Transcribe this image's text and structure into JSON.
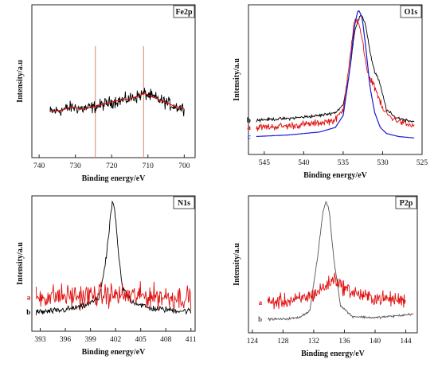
{
  "chart_data": [
    {
      "type": "line",
      "panel_label": "Fe2p",
      "xlabel": "Binding energy/eV",
      "ylabel": "Intensity/a.u",
      "xlim": [
        742,
        697
      ],
      "x_ticks": [
        740,
        730,
        720,
        710,
        700
      ],
      "y_ticks_labeled": false,
      "reference_lines": [
        724.5,
        711.2
      ],
      "reference_line_color": "#d98a6a",
      "series": [
        {
          "style": "noisy",
          "color": "#000000",
          "x": [
            737,
            734,
            731,
            728,
            725,
            722,
            719,
            716,
            713,
            711,
            709,
            706,
            703,
            700
          ],
          "values": [
            0.3,
            0.31,
            0.33,
            0.32,
            0.33,
            0.35,
            0.37,
            0.38,
            0.4,
            0.42,
            0.4,
            0.37,
            0.34,
            0.32
          ],
          "noise": 0.06
        },
        {
          "style": "smooth",
          "color": "#e01010",
          "x": [
            737,
            734,
            731,
            728,
            725,
            722,
            719,
            716,
            713,
            711,
            709,
            706,
            703,
            700
          ],
          "values": [
            0.3,
            0.31,
            0.33,
            0.32,
            0.33,
            0.35,
            0.37,
            0.38,
            0.4,
            0.42,
            0.4,
            0.37,
            0.34,
            0.32
          ]
        }
      ]
    },
    {
      "type": "line",
      "panel_label": "O1s",
      "xlabel": "Binding energy/eV",
      "ylabel": "Intensity/a.u",
      "xlim": [
        547,
        525
      ],
      "x_ticks": [
        545,
        540,
        535,
        530,
        525
      ],
      "y_ticks_labeled": false,
      "series": [
        {
          "name": "b",
          "style": "noisy",
          "color": "#000000",
          "x": [
            546,
            542,
            538,
            536,
            535,
            534.2,
            533.5,
            532.8,
            532.2,
            531.5,
            531,
            530.5,
            530,
            529.5,
            528.5,
            527,
            526
          ],
          "values": [
            0.23,
            0.24,
            0.26,
            0.28,
            0.33,
            0.55,
            0.84,
            0.93,
            0.88,
            0.66,
            0.55,
            0.5,
            0.4,
            0.3,
            0.25,
            0.23,
            0.22
          ],
          "noise": 0.015
        },
        {
          "name": "a",
          "style": "noisy",
          "color": "#e01010",
          "x": [
            546,
            542,
            538,
            536,
            535,
            534.2,
            533.6,
            533.1,
            532.6,
            532.2,
            531.8,
            531.2,
            530.5,
            530,
            529,
            527,
            526
          ],
          "values": [
            0.18,
            0.19,
            0.21,
            0.23,
            0.3,
            0.62,
            0.88,
            0.9,
            0.78,
            0.62,
            0.52,
            0.48,
            0.38,
            0.3,
            0.25,
            0.2,
            0.19
          ],
          "noise": 0.035
        },
        {
          "name": "c",
          "style": "smooth",
          "color": "#1a1ad0",
          "x": [
            546,
            542,
            538,
            536,
            535,
            534.2,
            533.6,
            533.1,
            532.6,
            532.1,
            531.6,
            531,
            530.3,
            529.5,
            528,
            526
          ],
          "values": [
            0.12,
            0.13,
            0.15,
            0.18,
            0.26,
            0.55,
            0.85,
            0.97,
            0.92,
            0.7,
            0.45,
            0.28,
            0.18,
            0.14,
            0.12,
            0.11
          ]
        }
      ]
    },
    {
      "type": "line",
      "panel_label": "N1s",
      "xlabel": "Binding energy/eV",
      "ylabel": "Intensity/a.u",
      "xlim": [
        392,
        411.5
      ],
      "x_ticks": [
        393,
        396,
        399,
        402,
        405,
        408,
        411
      ],
      "y_ticks_labeled": false,
      "series": [
        {
          "name": "b",
          "style": "noisy",
          "color": "#000000",
          "x": [
            392.5,
            395,
            398,
            400,
            400.8,
            401.3,
            401.6,
            401.9,
            402.3,
            402.8,
            404,
            406,
            408,
            410,
            411
          ],
          "values": [
            0.14,
            0.15,
            0.18,
            0.24,
            0.5,
            0.78,
            0.96,
            0.9,
            0.6,
            0.32,
            0.22,
            0.17,
            0.16,
            0.15,
            0.15
          ],
          "noise": 0.035
        },
        {
          "name": "a",
          "style": "noisy",
          "color": "#e01010",
          "x": [
            392.5,
            395,
            398,
            401,
            404,
            407,
            409,
            411
          ],
          "values": [
            0.25,
            0.26,
            0.26,
            0.27,
            0.26,
            0.26,
            0.25,
            0.25
          ],
          "noise": 0.13
        }
      ]
    },
    {
      "type": "line",
      "panel_label": "P2p",
      "xlabel": "Binding energy/eV",
      "ylabel": "Intensity/a.u",
      "xlim": [
        123.5,
        145.5
      ],
      "x_ticks": [
        124,
        128,
        132,
        136,
        140,
        144
      ],
      "y_ticks_labeled": false,
      "series": [
        {
          "name": "b",
          "style": "noisy",
          "color": "#555555",
          "x": [
            126,
            128,
            130,
            131.5,
            132.5,
            133.2,
            133.6,
            134,
            134.6,
            135.5,
            137,
            140,
            142,
            144,
            145
          ],
          "values": [
            0.1,
            0.1,
            0.11,
            0.16,
            0.55,
            0.88,
            0.96,
            0.9,
            0.55,
            0.2,
            0.12,
            0.11,
            0.12,
            0.13,
            0.14
          ],
          "noise": 0.012
        },
        {
          "name": "a",
          "style": "noisy",
          "color": "#e01010",
          "x": [
            126,
            128,
            130,
            132,
            133,
            134,
            134.8,
            135.6,
            137,
            139,
            141,
            143,
            144
          ],
          "values": [
            0.22,
            0.23,
            0.24,
            0.28,
            0.32,
            0.36,
            0.4,
            0.34,
            0.3,
            0.26,
            0.25,
            0.24,
            0.24
          ],
          "noise": 0.08
        }
      ]
    }
  ]
}
